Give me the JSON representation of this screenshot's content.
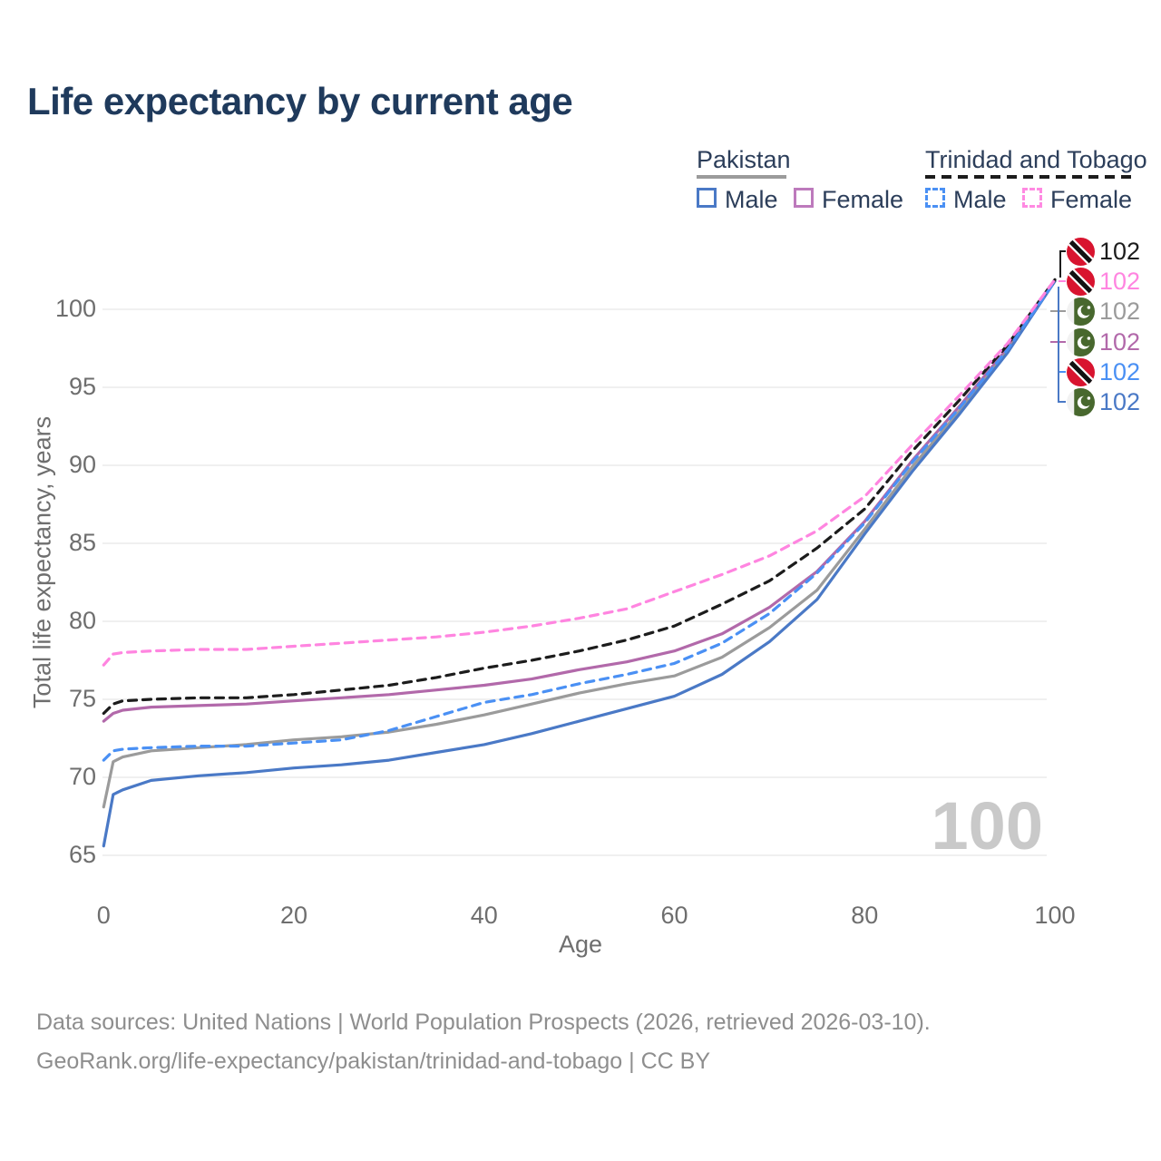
{
  "title": "Life expectancy by current age",
  "watermark": "100",
  "legend": {
    "groups": [
      {
        "label": "Pakistan",
        "line_style": "solid",
        "underline_color": "#9b9b9b",
        "items": [
          {
            "label": "Male",
            "color": "#4a79c6"
          },
          {
            "label": "Female",
            "color": "#bd7abc"
          }
        ]
      },
      {
        "label": "Trinidad and Tobago",
        "line_style": "dashed",
        "underline_color": "#1c1c1c",
        "items": [
          {
            "label": "Male",
            "color": "#4a90f4"
          },
          {
            "label": "Female",
            "color": "#ff8ae2"
          }
        ]
      }
    ]
  },
  "chart_data": {
    "type": "line",
    "title": "Life expectancy by current age",
    "xlabel": "Age",
    "ylabel": "Total life expectancy, years",
    "xlim": [
      0,
      100
    ],
    "ylim": [
      65,
      102
    ],
    "xticks": [
      0,
      20,
      40,
      60,
      80,
      100
    ],
    "yticks": [
      65,
      70,
      75,
      80,
      85,
      90,
      95,
      100
    ],
    "grid": "horizontal-only",
    "legend_position": "top-right",
    "ages": [
      0,
      1,
      2,
      5,
      10,
      15,
      20,
      25,
      30,
      35,
      40,
      45,
      50,
      55,
      60,
      65,
      70,
      75,
      80,
      85,
      90,
      95,
      100
    ],
    "series": [
      {
        "name": "Pakistan Female",
        "country": "Pakistan",
        "sex": "Female",
        "color": "#b269aa",
        "dash": false,
        "values": [
          73.6,
          74.1,
          74.3,
          74.5,
          74.6,
          74.7,
          74.9,
          75.1,
          75.3,
          75.6,
          75.9,
          76.3,
          76.9,
          77.4,
          78.1,
          79.2,
          80.9,
          83.2,
          86.4,
          90.3,
          93.8,
          97.5,
          101.8
        ]
      },
      {
        "name": "Pakistan All",
        "country": "Pakistan",
        "sex": "All",
        "color": "#9b9b9b",
        "dash": false,
        "values": [
          68.1,
          71.0,
          71.3,
          71.7,
          71.9,
          72.1,
          72.4,
          72.6,
          72.9,
          73.4,
          74.0,
          74.7,
          75.4,
          76.0,
          76.5,
          77.7,
          79.6,
          82.0,
          85.9,
          89.9,
          93.5,
          97.3,
          101.8
        ]
      },
      {
        "name": "Pakistan Male",
        "country": "Pakistan",
        "sex": "Male",
        "color": "#4a79c6",
        "dash": false,
        "values": [
          65.6,
          68.9,
          69.2,
          69.8,
          70.1,
          70.3,
          70.6,
          70.8,
          71.1,
          71.6,
          72.1,
          72.8,
          73.6,
          74.4,
          75.2,
          76.6,
          78.7,
          81.4,
          85.6,
          89.6,
          93.3,
          97.2,
          101.8
        ]
      },
      {
        "name": "Trinidad and Tobago All",
        "country": "Trinidad and Tobago",
        "sex": "All",
        "color": "#1c1c1c",
        "dash": true,
        "values": [
          74.1,
          74.7,
          74.9,
          75.0,
          75.1,
          75.1,
          75.3,
          75.6,
          75.9,
          76.4,
          77.0,
          77.5,
          78.1,
          78.8,
          79.7,
          81.1,
          82.6,
          84.7,
          87.2,
          90.9,
          94.2,
          97.7,
          101.9
        ]
      },
      {
        "name": "Trinidad and Tobago Male",
        "country": "Trinidad and Tobago",
        "sex": "Male",
        "color": "#4a90f4",
        "dash": true,
        "values": [
          71.1,
          71.7,
          71.8,
          71.9,
          72.0,
          72.0,
          72.2,
          72.4,
          73.0,
          73.9,
          74.8,
          75.3,
          76.0,
          76.6,
          77.3,
          78.6,
          80.5,
          83.1,
          86.3,
          90.2,
          93.7,
          97.4,
          101.8
        ]
      },
      {
        "name": "Trinidad and Tobago Female",
        "country": "Trinidad and Tobago",
        "sex": "Female",
        "color": "#ff85e0",
        "dash": true,
        "values": [
          77.2,
          77.9,
          78.0,
          78.1,
          78.2,
          78.2,
          78.4,
          78.6,
          78.8,
          79.0,
          79.3,
          79.7,
          80.2,
          80.8,
          81.9,
          83.0,
          84.2,
          85.8,
          88.0,
          91.3,
          94.5,
          97.8,
          101.9
        ]
      }
    ],
    "end_labels": [
      {
        "value": "102",
        "color": "#1c1c1c",
        "flag": "trinidad-and-tobago"
      },
      {
        "value": "102",
        "color": "#ff85e0",
        "flag": "trinidad-and-tobago"
      },
      {
        "value": "102",
        "color": "#9b9b9b",
        "flag": "pakistan"
      },
      {
        "value": "102",
        "color": "#b269aa",
        "flag": "pakistan"
      },
      {
        "value": "102",
        "color": "#4a90f4",
        "flag": "trinidad-and-tobago"
      },
      {
        "value": "102",
        "color": "#4a79c6",
        "flag": "pakistan"
      }
    ]
  },
  "footer": {
    "line1": "Data sources: United Nations | World Population Prospects (2026, retrieved 2026-03-10).",
    "line2": "GeoRank.org/life-expectancy/pakistan/trinidad-and-tobago | CC BY"
  }
}
